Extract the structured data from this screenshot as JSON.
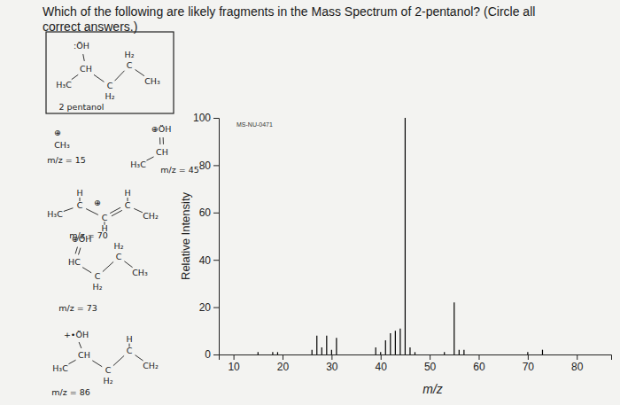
{
  "question": [
    "Which of the following are likely fragments in the Mass Spectrum of 2-pentanol? (Circle all",
    "correct answers.)"
  ],
  "structures": [
    {
      "label": "2 pentanol",
      "atoms": [
        ":ÖH",
        "CH",
        "H₃C",
        "C",
        "H₂",
        "C",
        "H₂",
        "CH₃"
      ]
    },
    {
      "label": "m/z = 15",
      "atoms": [
        "⊕",
        "CH₃"
      ]
    },
    {
      "label": "m/z = 45",
      "atoms": [
        "⊕ÖH",
        "CH",
        "H₃C"
      ]
    },
    {
      "label": "m/z = 70",
      "atoms": [
        "H₃C",
        "C",
        "H",
        "⊕",
        "C",
        "H",
        "C",
        "H",
        "CH₂"
      ]
    },
    {
      "label": "m/z = 73",
      "atoms": [
        "⊕ÖH",
        "HC",
        "C",
        "H₂",
        "C",
        "H₂",
        "CH₃"
      ]
    },
    {
      "label": "m/z = 86",
      "atoms": [
        "+•ÖH",
        "CH",
        "H₃C",
        "C",
        "H₂",
        "C",
        "H",
        "CH₂"
      ]
    }
  ],
  "chart_data": {
    "type": "bar",
    "annotation": "MS-NU-0471",
    "x_label": "m/z",
    "y_label": "Relative Intensity",
    "x": [
      15,
      18,
      19,
      26,
      27,
      28,
      29,
      30,
      31,
      39,
      40,
      41,
      42,
      43,
      44,
      45,
      46,
      47,
      53,
      55,
      56,
      57,
      70,
      73
    ],
    "values": [
      1,
      1,
      1,
      2,
      8,
      3,
      8,
      2,
      7,
      3,
      1,
      6,
      9,
      10,
      11,
      100,
      3,
      1,
      1,
      22,
      2,
      2,
      1,
      2
    ],
    "color": "#000000",
    "xlim": [
      7,
      87
    ],
    "xticks": [
      10,
      20,
      30,
      40,
      50,
      60,
      70,
      80
    ],
    "ylim": [
      0,
      100
    ],
    "yticks": [
      0,
      20,
      40,
      60,
      80,
      100
    ],
    "grid": false
  }
}
